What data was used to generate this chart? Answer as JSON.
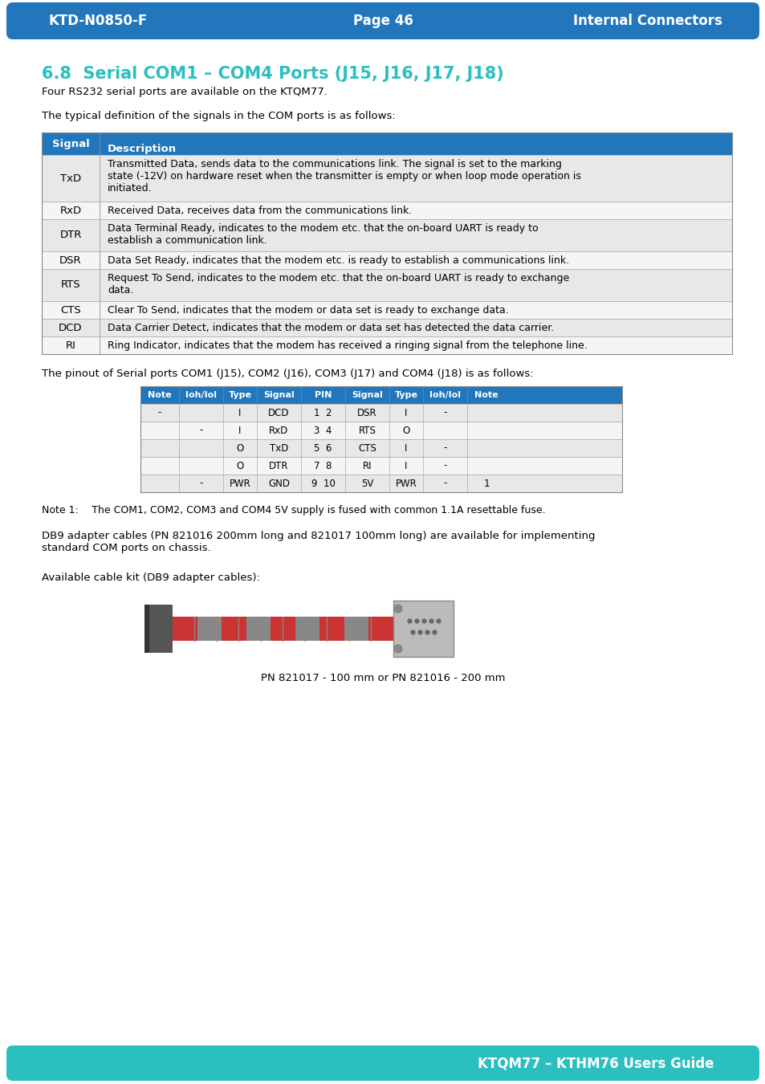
{
  "header_bg": "#2176bc",
  "header_text_color": "#ffffff",
  "header_left": "KTD-N0850-F",
  "header_center": "Page 46",
  "header_right": "Internal Connectors",
  "footer_bg": "#2bbfbf",
  "footer_text": "KTQM77 – KTHM76 Users Guide",
  "footer_text_color": "#ffffff",
  "section_title": "6.8  Serial COM1 – COM4 Ports (J15, J16, J17, J18)",
  "section_title_color": "#2bbfbf",
  "body_text_color": "#000000",
  "para1": "Four RS232 serial ports are available on the KTQM77.",
  "para2": "The typical definition of the signals in the COM ports is as follows:",
  "table1_header": [
    "Signal",
    "Description"
  ],
  "table1_header_bg": "#2176bc",
  "table1_header_text": "#ffffff",
  "table1_row_bg1": "#e8e8e8",
  "table1_row_bg2": "#f5f5f5",
  "table1_rows": [
    [
      "TxD",
      "Transmitted Data, sends data to the communications link. The signal is set to the marking\nstate (-12V) on hardware reset when the transmitter is empty or when loop mode operation is\ninitiated."
    ],
    [
      "RxD",
      "Received Data, receives data from the communications link."
    ],
    [
      "DTR",
      "Data Terminal Ready, indicates to the modem etc. that the on-board UART is ready to\nestablish a communication link."
    ],
    [
      "DSR",
      "Data Set Ready, indicates that the modem etc. is ready to establish a communications link."
    ],
    [
      "RTS",
      "Request To Send, indicates to the modem etc. that the on-board UART is ready to exchange\ndata."
    ],
    [
      "CTS",
      "Clear To Send, indicates that the modem or data set is ready to exchange data."
    ],
    [
      "DCD",
      "Data Carrier Detect, indicates that the modem or data set has detected the data carrier."
    ],
    [
      "RI",
      "Ring Indicator, indicates that the modem has received a ringing signal from the telephone line."
    ]
  ],
  "para3": "The pinout of Serial ports COM1 (J15), COM2 (J16), COM3 (J17) and COM4 (J18) is as follows:",
  "pinout_header": [
    "Note",
    "Ioh/Iol",
    "Type",
    "Signal",
    "PIN",
    "Signal",
    "Type",
    "Ioh/Iol",
    "Note"
  ],
  "pinout_header_bg": "#2176bc",
  "pinout_header_text": "#ffffff",
  "pinout_rows": [
    [
      "-",
      "",
      "I",
      "DCD",
      "1  2",
      "DSR",
      "I",
      "-",
      ""
    ],
    [
      "",
      "-",
      "I",
      "RxD",
      "3  4",
      "RTS",
      "O",
      "",
      ""
    ],
    [
      "",
      "",
      "O",
      "TxD",
      "5  6",
      "CTS",
      "I",
      "-",
      ""
    ],
    [
      "",
      "",
      "O",
      "DTR",
      "7  8",
      "RI",
      "I",
      "-",
      ""
    ],
    [
      "",
      "-",
      "PWR",
      "GND",
      "9  10",
      "5V",
      "PWR",
      "-",
      "1"
    ]
  ],
  "note1": "Note 1:  The COM1, COM2, COM3 and COM4 5V supply is fused with common 1.1A resettable fuse.",
  "para4": "DB9 adapter cables (PN 821016 200mm long and 821017 100mm long) are available for implementing\nstandard COM ports on chassis.",
  "para5": "Available cable kit (DB9 adapter cables):",
  "caption": "PN 821017 - 100 mm or PN 821016 - 200 mm",
  "page_bg": "#ffffff"
}
